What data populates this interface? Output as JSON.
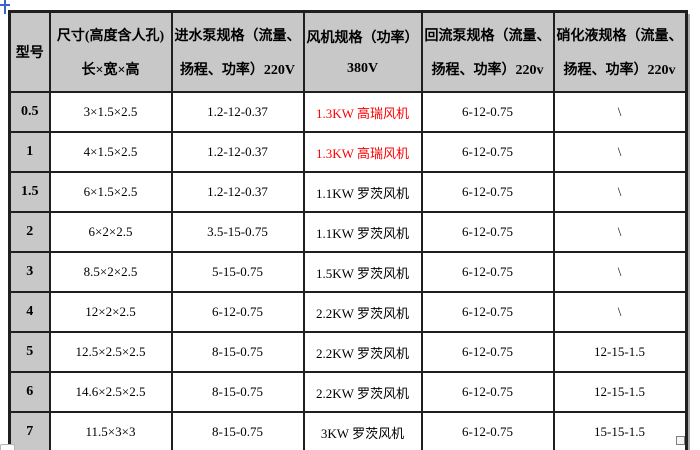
{
  "colors": {
    "header_bg": "#c8c8c8",
    "border": "#1f1f1f",
    "highlight_text": "#fd0000",
    "text": "#000000",
    "shadow": "#a8a8a8",
    "handle_blue": "#3c63c8"
  },
  "icons": {
    "table_move_handle": "cross-arrows-clipped",
    "table_resize_handle": "small-square"
  },
  "table": {
    "columns": [
      {
        "id": "model",
        "line1": "型号",
        "line2": ""
      },
      {
        "id": "size",
        "line1": "尺寸(高度含人孔)",
        "line2": "长×宽×高"
      },
      {
        "id": "inlet_pump",
        "line1": "进水泵规格（流量、",
        "line2": "扬程、功率）220V"
      },
      {
        "id": "fan",
        "line1": "风机规格（功率）",
        "line2": "380V"
      },
      {
        "id": "return_pump",
        "line1": "回流泵规格（流量、",
        "line2": "扬程、功率）220v"
      },
      {
        "id": "nitrification",
        "line1": "硝化液规格（流量、",
        "line2": "扬程、功率）220v"
      }
    ],
    "rows": [
      {
        "model": "0.5",
        "size": "3×1.5×2.5",
        "inlet": "1.2-12-0.37",
        "fan": "1.3KW 高瑞风机",
        "fan_highlight": true,
        "return_pump": "6-12-0.75",
        "nitrification": "\\"
      },
      {
        "model": "1",
        "size": "4×1.5×2.5",
        "inlet": "1.2-12-0.37",
        "fan": "1.3KW 高瑞风机",
        "fan_highlight": true,
        "return_pump": "6-12-0.75",
        "nitrification": "\\"
      },
      {
        "model": "1.5",
        "size": "6×1.5×2.5",
        "inlet": "1.2-12-0.37",
        "fan": "1.1KW 罗茨风机",
        "fan_highlight": false,
        "return_pump": "6-12-0.75",
        "nitrification": "\\"
      },
      {
        "model": "2",
        "size": "6×2×2.5",
        "inlet": "3.5-15-0.75",
        "fan": "1.1KW 罗茨风机",
        "fan_highlight": false,
        "return_pump": "6-12-0.75",
        "nitrification": "\\"
      },
      {
        "model": "3",
        "size": "8.5×2×2.5",
        "inlet": "5-15-0.75",
        "fan": "1.5KW 罗茨风机",
        "fan_highlight": false,
        "return_pump": "6-12-0.75",
        "nitrification": "\\"
      },
      {
        "model": "4",
        "size": "12×2×2.5",
        "inlet": "6-12-0.75",
        "fan": "2.2KW 罗茨风机",
        "fan_highlight": false,
        "return_pump": "6-12-0.75",
        "nitrification": "\\"
      },
      {
        "model": "5",
        "size": "12.5×2.5×2.5",
        "inlet": "8-15-0.75",
        "fan": "2.2KW 罗茨风机",
        "fan_highlight": false,
        "return_pump": "6-12-0.75",
        "nitrification": "12-15-1.5"
      },
      {
        "model": "6",
        "size": "14.6×2.5×2.5",
        "inlet": "8-15-0.75",
        "fan": "2.2KW 罗茨风机",
        "fan_highlight": false,
        "return_pump": "6-12-0.75",
        "nitrification": "12-15-1.5"
      },
      {
        "model": "7",
        "size": "11.5×3×3",
        "inlet": "8-15-0.75",
        "fan": "3KW 罗茨风机",
        "fan_highlight": false,
        "return_pump": "6-12-0.75",
        "nitrification": "15-15-1.5"
      }
    ]
  }
}
